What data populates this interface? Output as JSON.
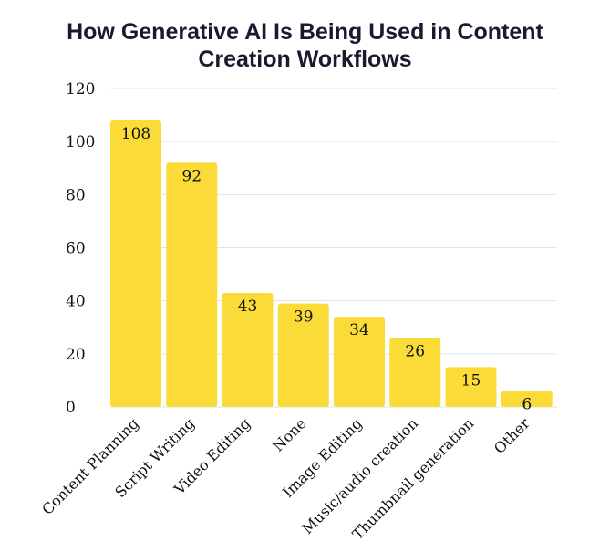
{
  "chart_data": {
    "type": "bar",
    "title_lines": [
      "How Generative AI Is Being Used in Content",
      "Creation Workflows"
    ],
    "categories": [
      "Content Planning",
      "Script Writing",
      "Video Editing",
      "None",
      "Image Editing",
      "Music/audio creation",
      "Thumbnail generation",
      "Other"
    ],
    "values": [
      108,
      92,
      43,
      39,
      34,
      26,
      15,
      6
    ],
    "xlabel": "",
    "ylabel": "",
    "ylim": [
      0,
      120
    ],
    "yticks": [
      0,
      20,
      40,
      60,
      80,
      100,
      120
    ],
    "grid": true,
    "legend": "none",
    "bar_color": "#fbdb38"
  }
}
